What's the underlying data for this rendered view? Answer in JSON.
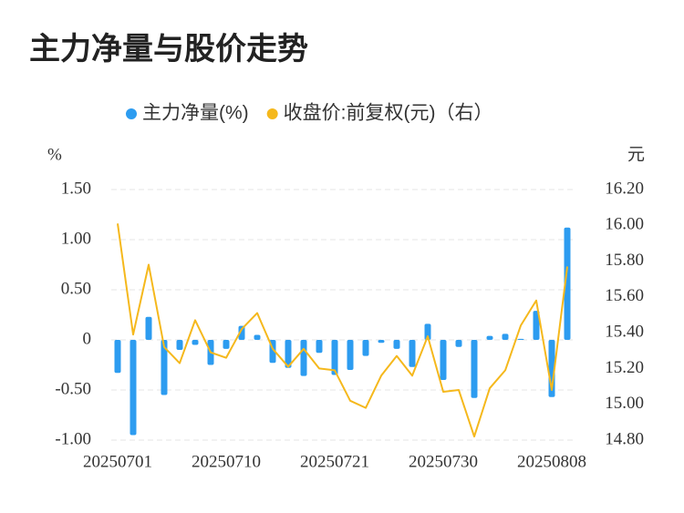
{
  "chart_data": {
    "type": "bar_line",
    "title": "主力净量与股价走势",
    "y_label": "%",
    "y2_label": "元",
    "categories": [
      "20250701",
      null,
      null,
      null,
      null,
      null,
      null,
      "20250710",
      null,
      null,
      null,
      null,
      null,
      null,
      "20250721",
      null,
      null,
      null,
      null,
      null,
      null,
      "20250730",
      null,
      null,
      null,
      null,
      null,
      null,
      "20250808",
      null
    ],
    "series": [
      {
        "name": "主力净量(%)",
        "color": "#2d9cf0",
        "type": "bar",
        "values": [
          -0.33,
          -0.95,
          0.23,
          -0.55,
          -0.1,
          -0.05,
          -0.25,
          -0.09,
          0.14,
          0.05,
          -0.23,
          -0.28,
          -0.36,
          -0.13,
          -0.35,
          -0.3,
          -0.16,
          -0.03,
          -0.09,
          -0.27,
          0.16,
          -0.4,
          -0.07,
          -0.58,
          0.04,
          0.06,
          0.01,
          0.29,
          -0.57,
          1.12
        ]
      },
      {
        "name": "收盘价:前复权(元)（右）",
        "color": "#f5b81c",
        "type": "line",
        "axis": "y2",
        "values": [
          16.01,
          15.39,
          15.78,
          15.32,
          15.23,
          15.47,
          15.29,
          15.26,
          15.42,
          15.51,
          15.31,
          15.21,
          15.31,
          15.2,
          15.19,
          15.02,
          14.98,
          15.16,
          15.27,
          15.16,
          15.38,
          15.07,
          15.08,
          14.82,
          15.09,
          15.19,
          15.44,
          15.58,
          15.08,
          15.77
        ]
      }
    ],
    "ylim": [
      -1,
      1.5
    ],
    "yticks": [
      {
        "value": -1,
        "label": "-1.00"
      },
      {
        "value": -0.5,
        "label": "-0.50"
      },
      0,
      {
        "value": 0.5,
        "label": "0.50"
      },
      {
        "value": 1,
        "label": "1.00"
      },
      {
        "value": 1.5,
        "label": "1.50"
      }
    ],
    "y2lim": [
      14.8,
      16.2
    ],
    "y2ticks": [
      {
        "value": 14.8,
        "label": "14.80"
      },
      {
        "value": 15,
        "label": "15.00"
      },
      {
        "value": 15.2,
        "label": "15.20"
      },
      {
        "value": 15.4,
        "label": "15.40"
      },
      {
        "value": 15.6,
        "label": "15.60"
      },
      {
        "value": 15.8,
        "label": "15.80"
      },
      {
        "value": 16,
        "label": "16.00"
      },
      {
        "value": 16.2,
        "label": "16.20"
      }
    ],
    "grid": true
  }
}
